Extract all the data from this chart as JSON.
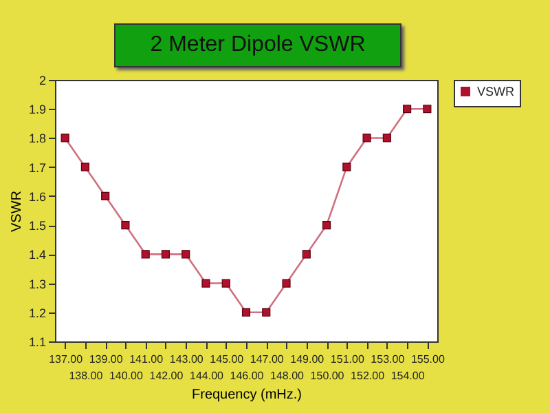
{
  "chart_data": {
    "type": "line",
    "title": "2 Meter Dipole VSWR",
    "xlabel": "Frequency (mHz.)",
    "ylabel": "VSWR",
    "categories": [
      "137.00",
      "138.00",
      "139.00",
      "140.00",
      "141.00",
      "142.00",
      "143.00",
      "144.00",
      "145.00",
      "146.00",
      "147.00",
      "148.00",
      "149.00",
      "150.00",
      "151.00",
      "152.00",
      "153.00",
      "154.00",
      "155.00"
    ],
    "series": [
      {
        "name": "VSWR",
        "color": "#b0102a",
        "values": [
          1.8,
          1.7,
          1.6,
          1.5,
          1.4,
          1.4,
          1.4,
          1.3,
          1.3,
          1.2,
          1.2,
          1.3,
          1.4,
          1.5,
          1.7,
          1.8,
          1.8,
          1.9,
          1.9
        ]
      }
    ],
    "ylim": [
      1.1,
      2
    ],
    "yticks": [
      1.1,
      1.2,
      1.3,
      1.4,
      1.5,
      1.6,
      1.7,
      1.8,
      1.9,
      2
    ],
    "marker": "square",
    "line_style": "solid",
    "legend": "right",
    "grid": false
  }
}
